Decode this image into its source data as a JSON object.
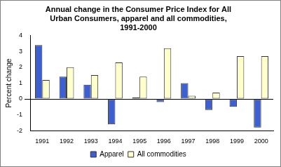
{
  "chart_data": {
    "type": "bar",
    "title": [
      "Annual change in the Consumer Price Index for All",
      "Urban Consumers, apparel and all commodities,",
      "1991-2000"
    ],
    "y_label": "Percent change",
    "categories": [
      "1991",
      "1992",
      "1993",
      "1994",
      "1995",
      "1996",
      "1997",
      "1998",
      "1999",
      "2000"
    ],
    "series": [
      {
        "name": "Apparel",
        "color": "#3d5fd0",
        "values": [
          3.4,
          1.4,
          0.9,
          -1.6,
          0.1,
          -0.2,
          1.0,
          -0.7,
          -0.5,
          -1.8
        ]
      },
      {
        "name": "All commodities",
        "color": "#ffffcc",
        "values": [
          1.2,
          2.0,
          1.5,
          2.3,
          1.4,
          3.2,
          0.2,
          0.4,
          2.7,
          2.7
        ]
      }
    ],
    "ylim": [
      -2,
      4
    ],
    "yticks": [
      -2,
      -1,
      0,
      1,
      2,
      3,
      4
    ],
    "grid": false,
    "legend": "bottom"
  }
}
